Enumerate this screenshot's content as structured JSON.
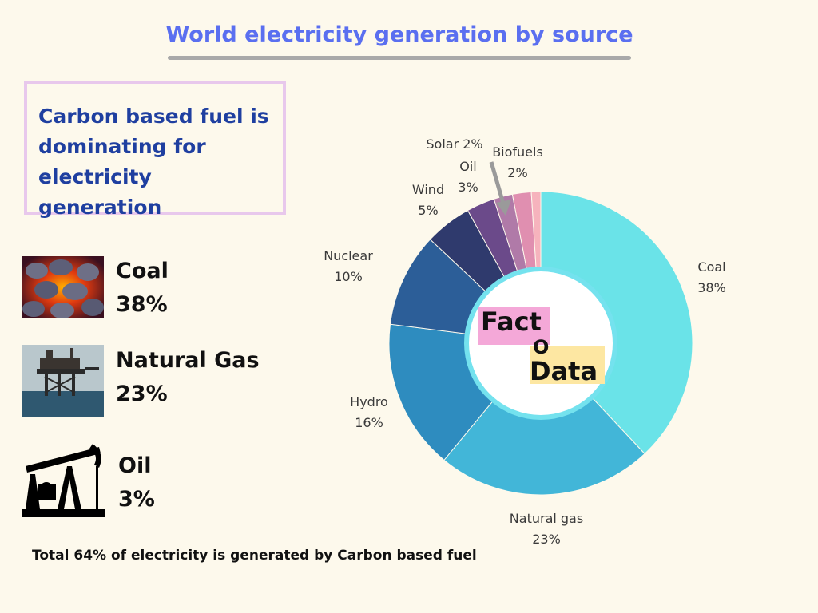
{
  "title": "World electricity generation by source",
  "callout": "Carbon based fuel is dominating  for electricity generation",
  "fuels": [
    {
      "name": "Coal",
      "pct": "38%"
    },
    {
      "name": "Natural Gas",
      "pct": "23%"
    },
    {
      "name": "Oil",
      "pct": "3%"
    }
  ],
  "footer": "Total 64% of electricity is generated by Carbon based fuel",
  "logo": {
    "top": "Fact",
    "middle": "O",
    "bottom": "Data"
  },
  "colors": {
    "title": "#5a6ff0",
    "callout_text": "#1f3fa0",
    "callout_border": "#e8c8ec",
    "background": "#fdf9ec"
  },
  "chart_data": {
    "type": "pie",
    "donut": true,
    "slices": [
      {
        "label": "Coal",
        "value": 38,
        "value_label": "38%",
        "color": "#6ae3e8"
      },
      {
        "label": "Natural gas",
        "value": 23,
        "value_label": "23%",
        "color": "#42b6d8"
      },
      {
        "label": "Hydro",
        "value": 16,
        "value_label": "16%",
        "color": "#2e8cbf"
      },
      {
        "label": "Nuclear",
        "value": 10,
        "value_label": "10%",
        "color": "#2c5e98"
      },
      {
        "label": "Wind",
        "value": 5,
        "value_label": "5%",
        "color": "#2f3a6d"
      },
      {
        "label": "Oil",
        "value": 3,
        "value_label": "3%",
        "color": "#6b4a8a"
      },
      {
        "label": "Solar",
        "value": 2,
        "value_label": "2%",
        "color": "#b07aa8"
      },
      {
        "label": "Biofuels",
        "value": 2,
        "value_label": "2%",
        "color": "#e08fb0"
      },
      {
        "label": "",
        "value": 1,
        "value_label": "",
        "color": "#f6b3bd"
      }
    ]
  }
}
